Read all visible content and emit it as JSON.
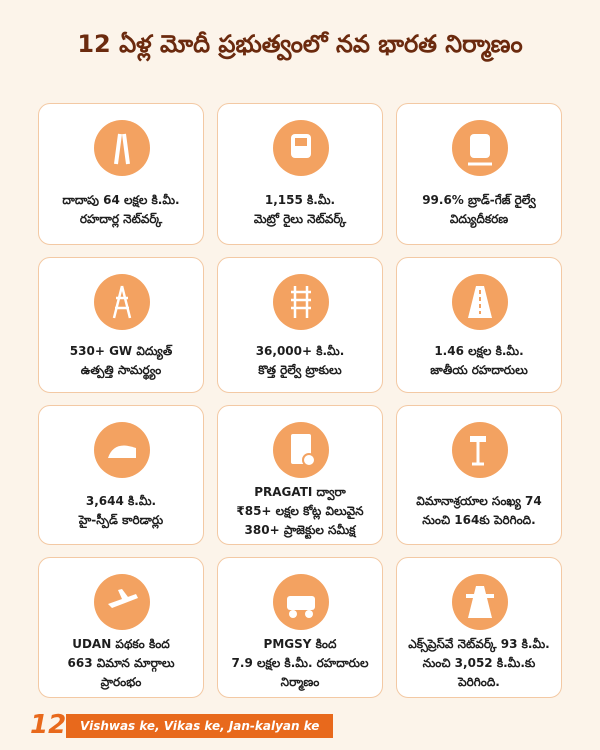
{
  "header": {
    "title": "12 ఏళ్ల మోదీ ప్రభుత్వంలో నవ భారత నిర్మాణం"
  },
  "cards": [
    {
      "lines": [
        "దాదాపు 64 లక్షల కి.మీ.",
        "రహదార్ల నెట్‌వర్క్"
      ]
    },
    {
      "lines": [
        "1,155 కి.మీ.",
        "మెట్రో రైలు నెట్‌వర్క్"
      ]
    },
    {
      "lines": [
        "99.6% బ్రాడ్-గేజ్ రైల్వే",
        "విద్యుదీకరణ"
      ]
    },
    {
      "lines": [
        "530+ GW విద్యుత్",
        "ఉత్పత్తి సామర్థ్యం"
      ]
    },
    {
      "lines": [
        "36,000+ కి.మీ.",
        "కొత్త రైల్వే ట్రాకులు"
      ]
    },
    {
      "lines": [
        "1.46 లక్షల కి.మీ.",
        "జాతీయ రహదారులు"
      ]
    },
    {
      "lines": [
        "3,644 కి.మీ.",
        "హై-స్పీడ్ కారిడార్లు"
      ]
    },
    {
      "lines": [
        "PRAGATI ద్వారా",
        "₹85+ లక్షల కోట్ల విలువైన",
        "380+ ప్రాజెక్టుల సమీక్ష"
      ]
    },
    {
      "lines": [
        "విమానాశ్రయాల సంఖ్య 74",
        "నుంచి 164కు పెరిగింది."
      ]
    },
    {
      "lines": [
        "UDAN పథకం కింద",
        "663 విమాన మార్గాలు",
        "ప్రారంభం"
      ]
    },
    {
      "lines": [
        "PMGSY కింద",
        "7.9 లక్షల కి.మీ. రహదారుల",
        "నిర్మాణం"
      ]
    },
    {
      "lines": [
        "ఎక్స్‌ప్రెస్‌వే నెట్‌వర్క్ 93 కి.మీ.",
        "నుంచి 3,052 కి.మీ.కు",
        "పెరిగింది."
      ]
    }
  ],
  "footer": {
    "badge": "12",
    "tagline": "Vishwas ke, Vikas ke, Jan-kalyan ke"
  }
}
